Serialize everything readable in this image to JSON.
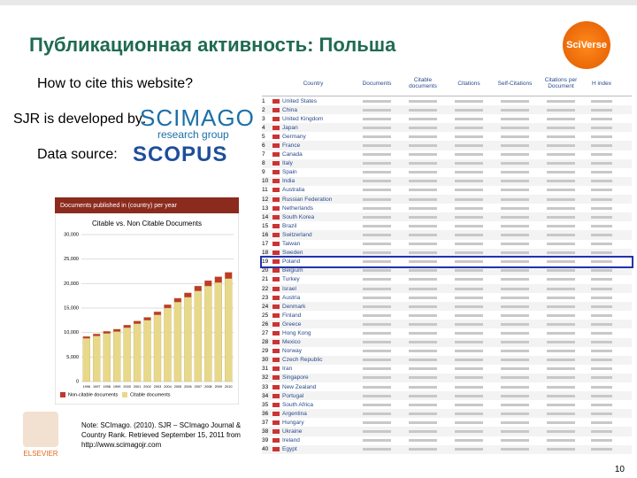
{
  "slide": {
    "title": "Публикационная активность: Польша",
    "logo": "SciVerse",
    "cite_question": "How to cite this website?",
    "developer_label": "SJR is developed by:",
    "developer_logo": "SCIMAGO",
    "developer_logo_sub": "research group",
    "source_label": "Data source:",
    "source_logo": "SCOPUS",
    "note": "Note: SCImago. (2010). SJR – SCImago Journal & Country Rank. Retrieved September 15, 2011 from http://www.scimagojr.com",
    "publisher": "ELSEVIER",
    "page_number": "10"
  },
  "chart": {
    "type": "bar",
    "stacked": true,
    "header": "Documents published in (country) per year",
    "title": "Citable vs. Non Citable Documents",
    "categories": [
      "1996",
      "1997",
      "1998",
      "1999",
      "2000",
      "2001",
      "2002",
      "2003",
      "2004",
      "2005",
      "2006",
      "2007",
      "2008",
      "2009",
      "2010"
    ],
    "series": [
      {
        "name": "Citable documents",
        "color": "#e8d98a",
        "values": [
          8800,
          9300,
          9800,
          10200,
          11000,
          11800,
          12500,
          13600,
          15000,
          16200,
          17200,
          18500,
          19500,
          20200,
          21000
        ]
      },
      {
        "name": "Non-citable documents",
        "color": "#c0392b",
        "values": [
          400,
          420,
          450,
          480,
          520,
          560,
          600,
          650,
          700,
          800,
          900,
          1000,
          1100,
          1200,
          1300
        ]
      }
    ],
    "ylim": [
      0,
      30000
    ],
    "yticks": [
      0,
      {
        "value": 5000,
        "label": "5,000"
      },
      {
        "value": 10000,
        "label": "10,000"
      },
      {
        "value": 15000,
        "label": "15,000"
      },
      {
        "value": 20000,
        "label": "20,000"
      },
      {
        "value": 25000,
        "label": "25,000"
      },
      {
        "value": 30000,
        "label": "30,000"
      }
    ],
    "grid": true
  },
  "table": {
    "columns": [
      "Country",
      "Documents",
      "Citable documents",
      "Citations",
      "Self-Citations",
      "Citations per Document",
      "H index"
    ],
    "rows": [
      [
        "1",
        "United States"
      ],
      [
        "2",
        "China"
      ],
      [
        "3",
        "United Kingdom"
      ],
      [
        "4",
        "Japan"
      ],
      [
        "5",
        "Germany"
      ],
      [
        "6",
        "France"
      ],
      [
        "7",
        "Canada"
      ],
      [
        "8",
        "Italy"
      ],
      [
        "9",
        "Spain"
      ],
      [
        "10",
        "India"
      ],
      [
        "11",
        "Australia"
      ],
      [
        "12",
        "Russian Federation"
      ],
      [
        "13",
        "Netherlands"
      ],
      [
        "14",
        "South Korea"
      ],
      [
        "15",
        "Brazil"
      ],
      [
        "16",
        "Switzerland"
      ],
      [
        "17",
        "Taiwan"
      ],
      [
        "18",
        "Sweden"
      ],
      [
        "19",
        "Poland"
      ],
      [
        "20",
        "Belgium"
      ],
      [
        "21",
        "Turkey"
      ],
      [
        "22",
        "Israel"
      ],
      [
        "23",
        "Austria"
      ],
      [
        "24",
        "Denmark"
      ],
      [
        "25",
        "Finland"
      ],
      [
        "26",
        "Greece"
      ],
      [
        "27",
        "Hong Kong"
      ],
      [
        "28",
        "Mexico"
      ],
      [
        "29",
        "Norway"
      ],
      [
        "30",
        "Czech Republic"
      ],
      [
        "31",
        "Iran"
      ],
      [
        "32",
        "Singapore"
      ],
      [
        "33",
        "New Zealand"
      ],
      [
        "34",
        "Portugal"
      ],
      [
        "35",
        "South Africa"
      ],
      [
        "36",
        "Argentina"
      ],
      [
        "37",
        "Hungary"
      ],
      [
        "38",
        "Ukraine"
      ],
      [
        "39",
        "Ireland"
      ],
      [
        "40",
        "Egypt"
      ]
    ],
    "highlight_row": 18
  }
}
